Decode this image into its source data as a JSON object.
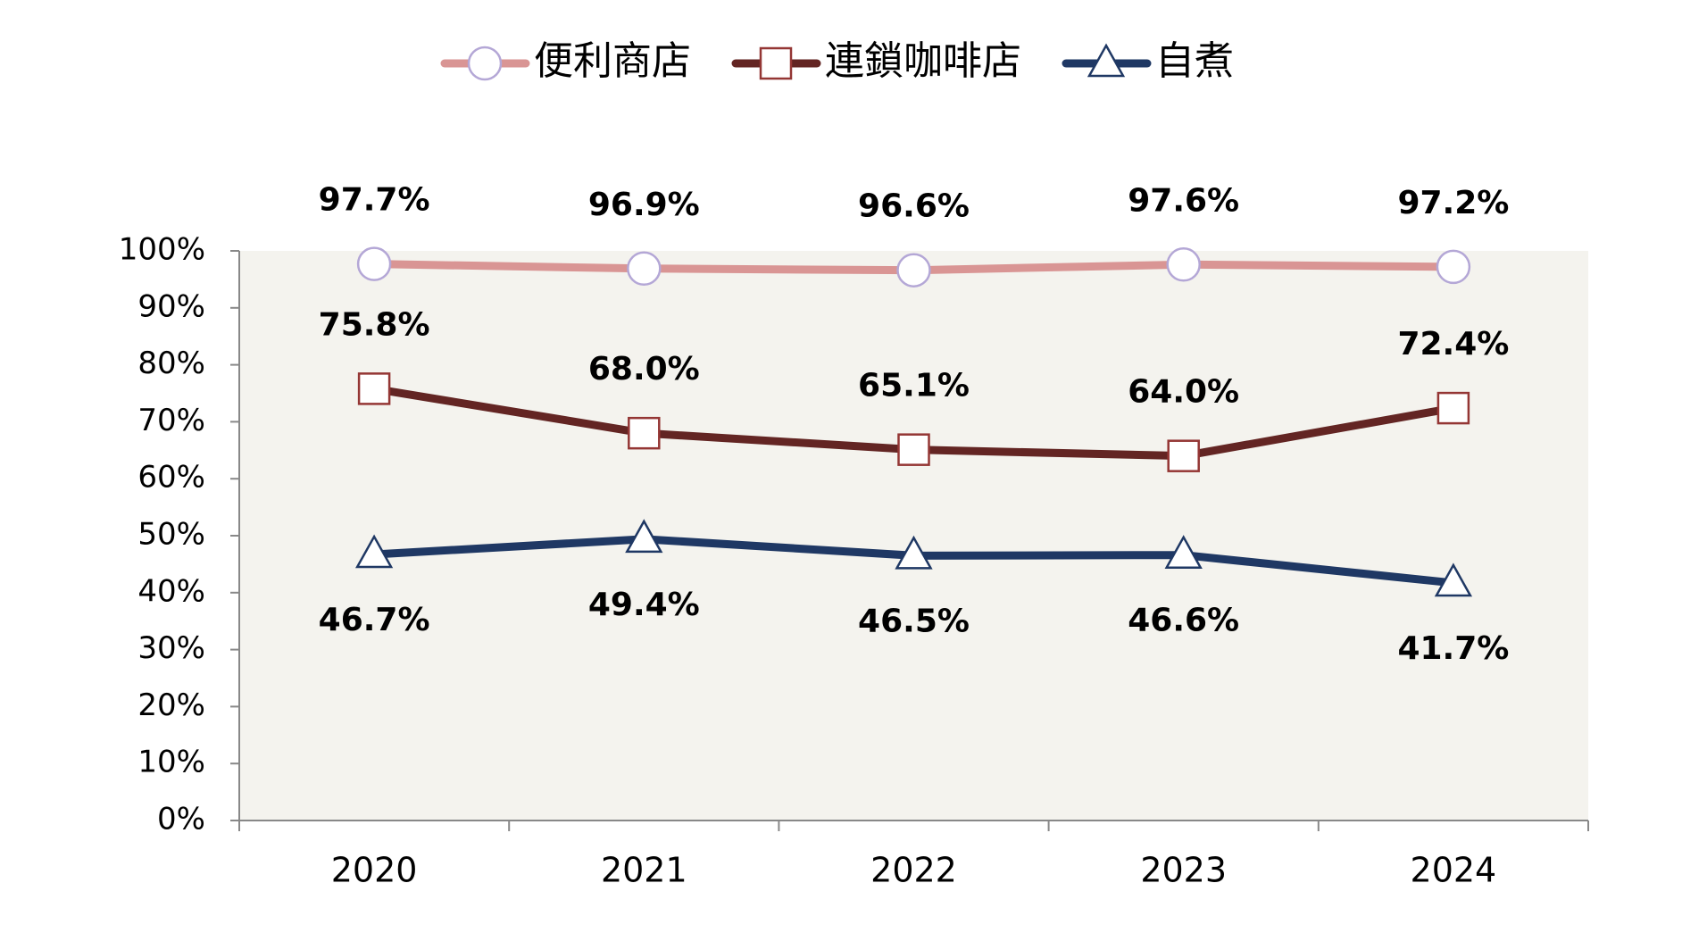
{
  "chart_data": {
    "type": "line",
    "categories": [
      "2020",
      "2021",
      "2022",
      "2023",
      "2024"
    ],
    "series": [
      {
        "name": "便利商店",
        "color": "#d99594",
        "marker": "circle",
        "marker_color": "#b4a7d6",
        "label_position": "above",
        "values": [
          97.7,
          96.9,
          96.6,
          97.6,
          97.2
        ],
        "value_labels": [
          "97.7%",
          "96.9%",
          "96.6%",
          "97.6%",
          "97.2%"
        ]
      },
      {
        "name": "連鎖咖啡店",
        "color": "#632523",
        "marker": "square",
        "marker_color": "#943634",
        "label_position": "above",
        "values": [
          75.8,
          68.0,
          65.1,
          64.0,
          72.4
        ],
        "value_labels": [
          "75.8%",
          "68.0%",
          "65.1%",
          "64.0%",
          "72.4%"
        ]
      },
      {
        "name": "自煮",
        "color": "#1f3864",
        "marker": "triangle",
        "marker_color": "#1f3864",
        "label_position": "below",
        "values": [
          46.7,
          49.4,
          46.5,
          46.6,
          41.7
        ],
        "value_labels": [
          "46.7%",
          "49.4%",
          "46.5%",
          "46.6%",
          "41.7%"
        ]
      }
    ],
    "ylim": [
      0,
      100
    ],
    "yticks": [
      {
        "value": 0,
        "label": "0%"
      },
      {
        "value": 10,
        "label": "10%"
      },
      {
        "value": 20,
        "label": "20%"
      },
      {
        "value": 30,
        "label": "30%"
      },
      {
        "value": 40,
        "label": "40%"
      },
      {
        "value": 50,
        "label": "50%"
      },
      {
        "value": 60,
        "label": "60%"
      },
      {
        "value": 70,
        "label": "70%"
      },
      {
        "value": 80,
        "label": "80%"
      },
      {
        "value": 90,
        "label": "90%"
      },
      {
        "value": 100,
        "label": "100%"
      }
    ],
    "plot_background": "#f4f3ee",
    "legend": "top"
  }
}
